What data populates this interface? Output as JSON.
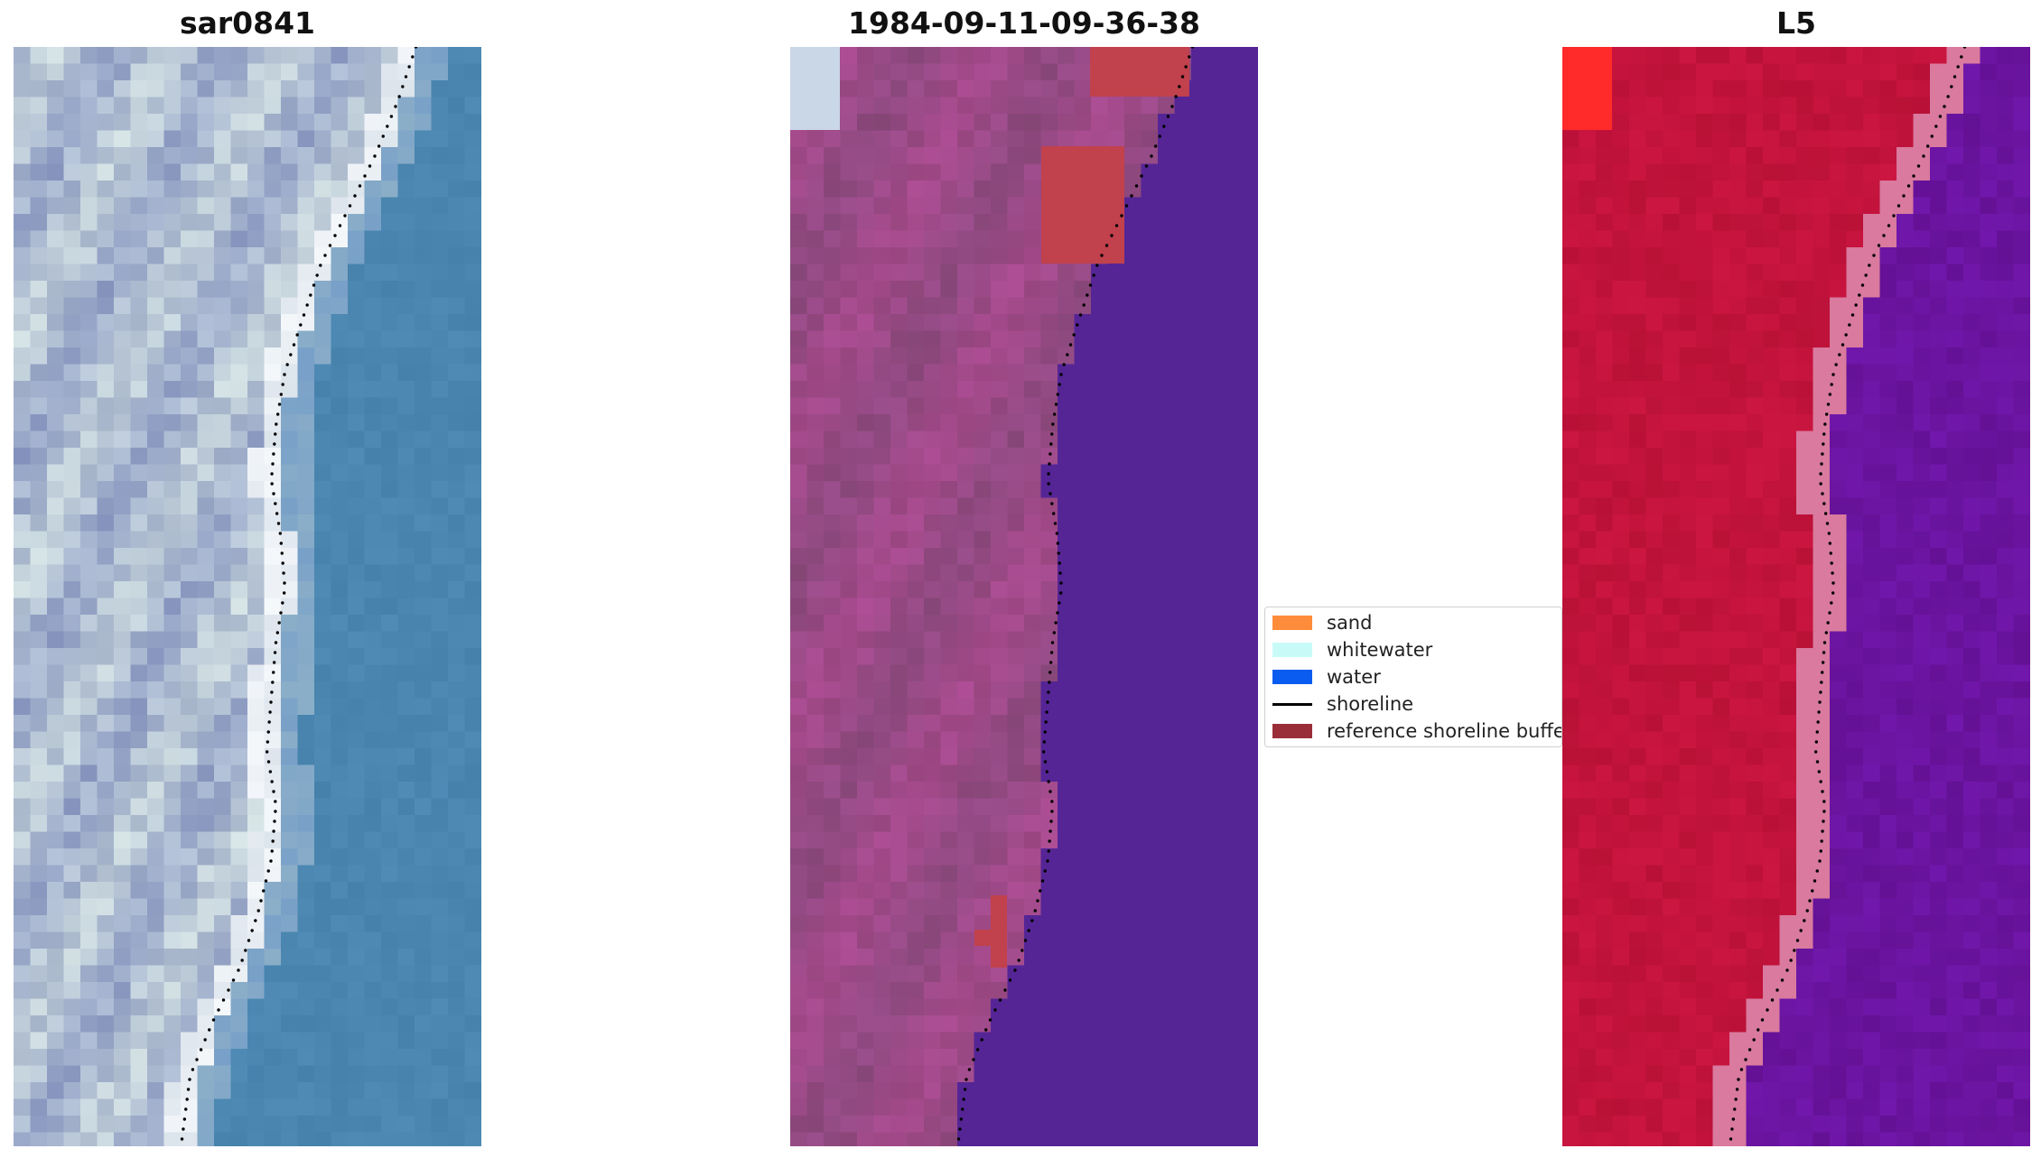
{
  "panels": {
    "left": {
      "title": "sar0841"
    },
    "middle": {
      "title": "1984-09-11-09-36-38"
    },
    "right": {
      "title": "L5"
    }
  },
  "legend": {
    "items": [
      {
        "label": "sand",
        "kind": "patch",
        "color": "#ff8c3b"
      },
      {
        "label": "whitewater",
        "kind": "patch",
        "color": "#c8fbf8"
      },
      {
        "label": "water",
        "kind": "patch",
        "color": "#0a5cf0"
      },
      {
        "label": "shoreline",
        "kind": "line",
        "color": "#000000"
      },
      {
        "label": "reference shoreline buffer",
        "kind": "patch",
        "color": "#9a2e38"
      }
    ]
  },
  "colors": {
    "rgb_land": "#aebcd2",
    "rgb_sea": "#4a86b0",
    "class_land": "#9a4a86",
    "class_water": "#552596",
    "class_buffer": "#c1414c",
    "class_corner": "#c9d7e6",
    "ndwi_land": "#c2133c",
    "ndwi_transition": "#d97a9e",
    "ndwi_water": "#6a14a0",
    "ndwi_hot": "#ff2a2a",
    "shoreline": "#000000"
  }
}
